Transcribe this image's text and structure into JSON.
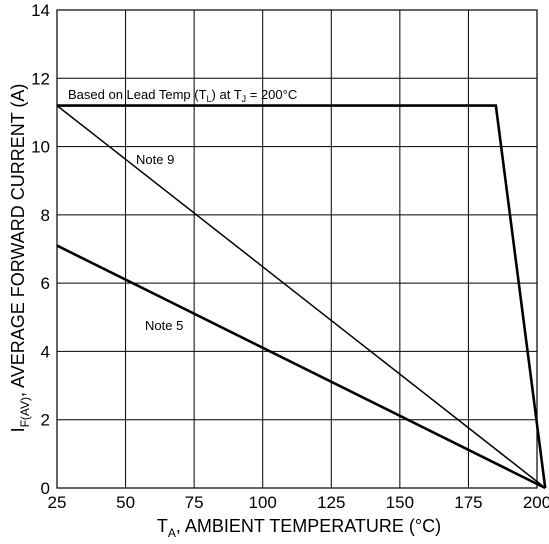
{
  "chart_data": {
    "type": "line",
    "xlabel": {
      "main": "T",
      "sub": "A",
      "rest": ", AMBIENT TEMPERATURE (°C)"
    },
    "ylabel": {
      "main": "I",
      "sub": "F(AV)",
      "rest": ", AVERAGE FORWARD CURRENT (A)"
    },
    "xlim": [
      25,
      200
    ],
    "ylim": [
      0,
      14
    ],
    "xticks": [
      25,
      50,
      75,
      100,
      125,
      150,
      175,
      200
    ],
    "yticks": [
      0,
      2,
      4,
      6,
      8,
      10,
      12,
      14
    ],
    "grid": true,
    "series": [
      {
        "x": [
          25,
          185,
          203
        ],
        "y": [
          11.2,
          11.2,
          0
        ],
        "width": "thick"
      },
      {
        "x": [
          25,
          203
        ],
        "y": [
          11.2,
          0
        ],
        "width": "thin"
      },
      {
        "x": [
          25,
          203
        ],
        "y": [
          7.1,
          0
        ],
        "width": "thick"
      }
    ],
    "annotations": {
      "lead_temp": {
        "p1": "Based on Lead Temp (T",
        "s1": "L",
        "p2": ") at T",
        "s2": "J",
        "p3": " = 200°C"
      },
      "note9": "Note 9",
      "note5": "Note 5"
    }
  }
}
